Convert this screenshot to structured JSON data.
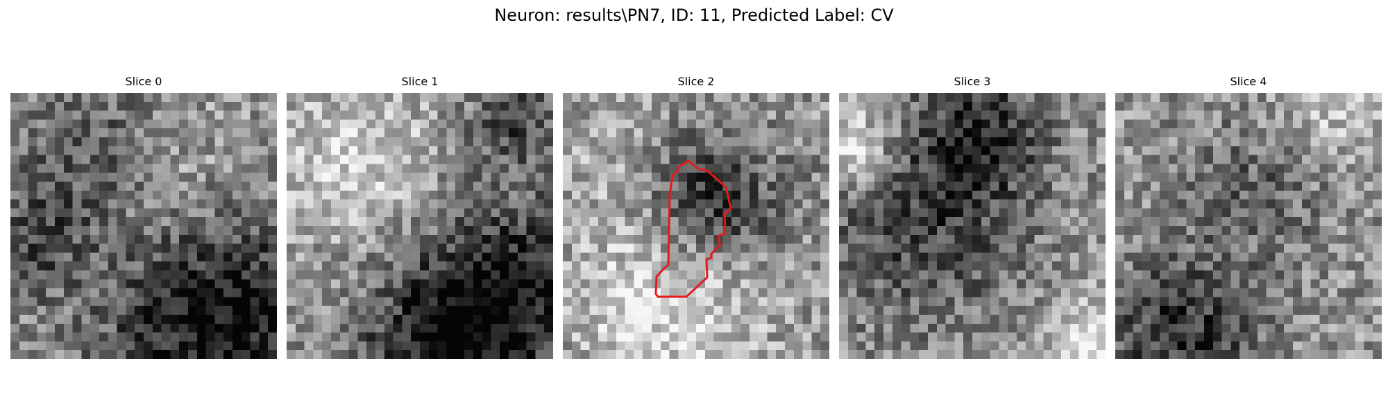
{
  "figure": {
    "suptitle": "Neuron: results\\PN7, ID: 11, Predicted Label: CV"
  },
  "slices": [
    {
      "title": "Slice 0",
      "seed": 101,
      "blobs": [
        [
          0.78,
          0.85,
          0.3,
          -0.55
        ],
        [
          0.3,
          0.2,
          0.2,
          -0.25
        ],
        [
          0.1,
          0.55,
          0.15,
          -0.25
        ],
        [
          0.6,
          0.35,
          0.22,
          0.15
        ]
      ]
    },
    {
      "title": "Slice 1",
      "seed": 202,
      "blobs": [
        [
          0.85,
          0.75,
          0.25,
          -0.5
        ],
        [
          0.25,
          0.25,
          0.22,
          0.25
        ],
        [
          0.55,
          0.95,
          0.2,
          -0.4
        ],
        [
          0.85,
          0.1,
          0.12,
          -0.3
        ]
      ]
    },
    {
      "title": "Slice 2",
      "seed": 303,
      "blobs": [
        [
          0.55,
          0.4,
          0.18,
          -0.45
        ],
        [
          0.4,
          0.78,
          0.25,
          0.3
        ],
        [
          0.2,
          0.25,
          0.2,
          0.1
        ]
      ],
      "contour": true
    },
    {
      "title": "Slice 3",
      "seed": 404,
      "blobs": [
        [
          0.3,
          0.45,
          0.28,
          -0.35
        ],
        [
          0.55,
          0.15,
          0.15,
          -0.35
        ],
        [
          0.05,
          0.2,
          0.12,
          0.4
        ],
        [
          0.95,
          0.95,
          0.12,
          0.35
        ]
      ]
    },
    {
      "title": "Slice 4",
      "seed": 505,
      "blobs": [
        [
          0.25,
          0.9,
          0.2,
          -0.4
        ],
        [
          0.55,
          0.35,
          0.2,
          -0.2
        ],
        [
          0.8,
          0.1,
          0.15,
          0.2
        ]
      ]
    }
  ],
  "contour_color": "#e41a1c",
  "grid_size": 30
}
